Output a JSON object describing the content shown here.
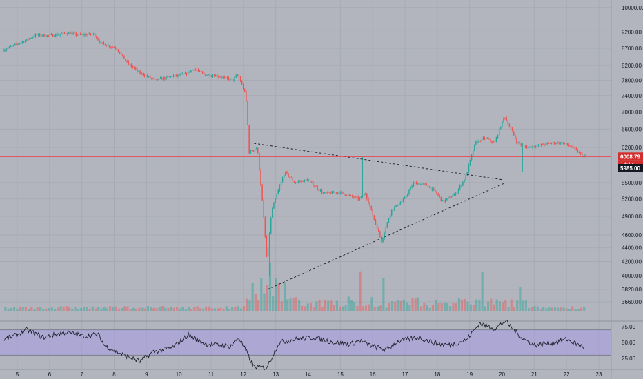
{
  "colors": {
    "background": "#b2b5be",
    "grid": "#a7aab3",
    "up": "#26a69a",
    "down": "#ef5350",
    "text": "#131722",
    "price_line": "#f23645",
    "rsi_band": "#a99be6",
    "rsi_line": "#1e222d",
    "trendline": "#1e222d"
  },
  "price_axis": {
    "ticks": [
      3660,
      3820,
      4000,
      4200,
      4400,
      4600,
      4900,
      5200,
      5500,
      5800,
      6200,
      6600,
      7000,
      7400,
      7800,
      8200,
      8700,
      9200,
      10000
    ],
    "labels": [
      "3660.00",
      "3820.00",
      "4000.00",
      "4200.00",
      "4400.00",
      "4600.00",
      "4900.00",
      "5200.00",
      "5500.00",
      "5800.00",
      "6200.00",
      "6600.00",
      "7000.00",
      "7400.00",
      "7800.00",
      "8200.00",
      "8700.00",
      "9200.00",
      "10000.00"
    ],
    "scale": "log",
    "range": [
      3520,
      10200
    ]
  },
  "price_badge": {
    "price": "6008.79",
    "countdown": "14:14",
    "price_value": 6008.79
  },
  "level_badge": {
    "price": "5985.00",
    "price_value": 5985
  },
  "rsi_axis": {
    "labels": [
      "75.00",
      "50.00",
      "25.00"
    ],
    "values": [
      75,
      50,
      25
    ],
    "band": [
      30,
      70
    ]
  },
  "time_axis": {
    "labels": [
      "5",
      "6",
      "7",
      "8",
      "9",
      "10",
      "11",
      "12",
      "13",
      "14",
      "15",
      "16",
      "17",
      "18",
      "19",
      "20",
      "21",
      "22",
      "23"
    ],
    "days": [
      5,
      6,
      7,
      8,
      9,
      10,
      11,
      12,
      13,
      14,
      15,
      16,
      17,
      18,
      19,
      20,
      21,
      22,
      23
    ],
    "unit": "March day"
  },
  "chart_data": {
    "type": "candlestick",
    "price_anchors": [
      [
        4.6,
        8650
      ],
      [
        5.2,
        8900
      ],
      [
        5.6,
        9100
      ],
      [
        6.0,
        9080
      ],
      [
        6.6,
        9160
      ],
      [
        7.0,
        9100
      ],
      [
        7.4,
        9130
      ],
      [
        7.6,
        8850
      ],
      [
        8.1,
        8700
      ],
      [
        8.4,
        8300
      ],
      [
        8.8,
        8000
      ],
      [
        9.3,
        7800
      ],
      [
        9.8,
        7900
      ],
      [
        10.2,
        7950
      ],
      [
        10.5,
        8120
      ],
      [
        10.8,
        7950
      ],
      [
        11.2,
        7920
      ],
      [
        11.7,
        7800
      ],
      [
        11.85,
        7950
      ],
      [
        12.1,
        7400
      ],
      [
        12.2,
        6100
      ],
      [
        12.45,
        6200
      ],
      [
        12.75,
        4200
      ],
      [
        12.9,
        5000
      ],
      [
        13.3,
        5700
      ],
      [
        13.6,
        5500
      ],
      [
        14.0,
        5550
      ],
      [
        14.5,
        5300
      ],
      [
        15.0,
        5320
      ],
      [
        15.6,
        5200
      ],
      [
        15.8,
        5300
      ],
      [
        16.1,
        4800
      ],
      [
        16.3,
        4500
      ],
      [
        16.6,
        5000
      ],
      [
        17.0,
        5200
      ],
      [
        17.3,
        5500
      ],
      [
        17.7,
        5450
      ],
      [
        18.0,
        5300
      ],
      [
        18.2,
        5150
      ],
      [
        18.6,
        5300
      ],
      [
        18.9,
        5600
      ],
      [
        19.2,
        6300
      ],
      [
        19.5,
        6400
      ],
      [
        19.8,
        6300
      ],
      [
        20.1,
        6900
      ],
      [
        20.3,
        6600
      ],
      [
        20.5,
        6300
      ],
      [
        20.8,
        6200
      ],
      [
        21.2,
        6250
      ],
      [
        21.6,
        6300
      ],
      [
        21.9,
        6300
      ],
      [
        22.2,
        6200
      ],
      [
        22.55,
        6010
      ]
    ],
    "wick_spikes": [
      {
        "x": 12.8,
        "low": 4000
      },
      {
        "x": 15.65,
        "high": 6000
      },
      {
        "x": 20.6,
        "low": 5700
      }
    ],
    "triangle_upper": [
      [
        12.2,
        6300
      ],
      [
        20.05,
        5550
      ]
    ],
    "triangle_lower": [
      [
        12.75,
        3820
      ],
      [
        20.05,
        5480
      ]
    ],
    "volume_spikes": [
      {
        "x": 12.55,
        "value": 0.6
      },
      {
        "x": 12.75,
        "value": 0.88
      },
      {
        "x": 12.95,
        "value": 0.6
      },
      {
        "x": 13.2,
        "value": 0.52
      },
      {
        "x": 15.6,
        "value": 0.73
      },
      {
        "x": 16.3,
        "value": 0.6
      },
      {
        "x": 19.4,
        "value": 0.72
      },
      {
        "x": 20.5,
        "value": 0.45
      }
    ],
    "rsi_anchors": [
      [
        4.6,
        55
      ],
      [
        5.0,
        62
      ],
      [
        5.3,
        70
      ],
      [
        5.8,
        58
      ],
      [
        6.5,
        66
      ],
      [
        7.1,
        60
      ],
      [
        7.5,
        63
      ],
      [
        7.7,
        45
      ],
      [
        8.3,
        30
      ],
      [
        8.8,
        20
      ],
      [
        9.2,
        35
      ],
      [
        9.8,
        42
      ],
      [
        10.3,
        62
      ],
      [
        10.8,
        48
      ],
      [
        11.6,
        44
      ],
      [
        11.85,
        58
      ],
      [
        12.1,
        35
      ],
      [
        12.3,
        12
      ],
      [
        12.7,
        10
      ],
      [
        12.8,
        18
      ],
      [
        13.1,
        50
      ],
      [
        13.6,
        55
      ],
      [
        14.2,
        58
      ],
      [
        14.8,
        50
      ],
      [
        15.3,
        47
      ],
      [
        15.6,
        53
      ],
      [
        15.9,
        46
      ],
      [
        16.4,
        38
      ],
      [
        16.8,
        52
      ],
      [
        17.4,
        58
      ],
      [
        18.0,
        48
      ],
      [
        18.4,
        46
      ],
      [
        18.9,
        54
      ],
      [
        19.3,
        80
      ],
      [
        19.8,
        72
      ],
      [
        20.1,
        84
      ],
      [
        20.6,
        58
      ],
      [
        21.0,
        46
      ],
      [
        21.6,
        50
      ],
      [
        22.0,
        55
      ],
      [
        22.55,
        42
      ]
    ]
  }
}
